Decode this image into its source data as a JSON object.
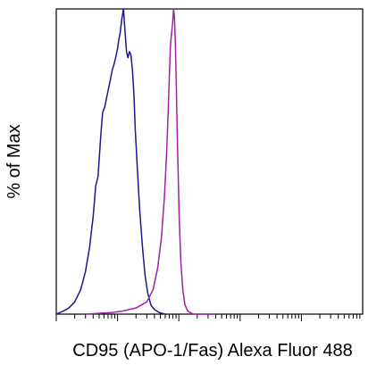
{
  "chart_data": {
    "type": "line",
    "title": "",
    "xlabel": "CD95 (APO-1/Fas) Alexa Fluor 488",
    "ylabel": "% of Max",
    "x_scale": "log",
    "xlim": [
      1,
      100000
    ],
    "ylim": [
      0,
      100
    ],
    "grid": false,
    "legend": "none",
    "series": [
      {
        "color": "#1a1a8c",
        "points": [
          [
            1.0,
            0
          ],
          [
            1.3,
            1
          ],
          [
            1.6,
            2
          ],
          [
            2.0,
            4
          ],
          [
            2.5,
            8
          ],
          [
            3.0,
            14
          ],
          [
            3.5,
            22
          ],
          [
            4.0,
            32
          ],
          [
            4.4,
            42
          ],
          [
            4.8,
            45
          ],
          [
            5.3,
            58
          ],
          [
            5.7,
            66
          ],
          [
            6.2,
            68
          ],
          [
            6.8,
            72
          ],
          [
            7.5,
            76
          ],
          [
            8.2,
            80
          ],
          [
            8.8,
            82
          ],
          [
            9.3,
            84
          ],
          [
            10.0,
            87
          ],
          [
            10.5,
            90
          ],
          [
            11.0,
            92
          ],
          [
            11.8,
            97
          ],
          [
            12.5,
            100
          ],
          [
            13.2,
            93
          ],
          [
            14.0,
            86
          ],
          [
            14.8,
            84
          ],
          [
            15.6,
            86
          ],
          [
            16.5,
            85
          ],
          [
            17.5,
            80
          ],
          [
            18.5,
            72
          ],
          [
            19.5,
            60
          ],
          [
            21.0,
            48
          ],
          [
            23.0,
            34
          ],
          [
            25.5,
            22
          ],
          [
            28.0,
            13
          ],
          [
            31.0,
            7
          ],
          [
            35.0,
            3
          ],
          [
            40.0,
            1.5
          ],
          [
            48.0,
            0.5
          ],
          [
            60.0,
            0
          ]
        ]
      },
      {
        "color": "#a020a8",
        "points": [
          [
            3.0,
            0
          ],
          [
            8.0,
            0.5
          ],
          [
            12.0,
            1
          ],
          [
            20.0,
            2
          ],
          [
            30.0,
            4
          ],
          [
            38.0,
            8
          ],
          [
            45.0,
            15
          ],
          [
            52.0,
            25
          ],
          [
            58.0,
            38
          ],
          [
            63.0,
            52
          ],
          [
            67.0,
            66
          ],
          [
            70.0,
            78
          ],
          [
            73.0,
            88
          ],
          [
            76.0,
            92
          ],
          [
            79.0,
            95
          ],
          [
            82.0,
            100
          ],
          [
            85.0,
            97
          ],
          [
            88.0,
            88
          ],
          [
            91.0,
            75
          ],
          [
            94.0,
            60
          ],
          [
            98.0,
            44
          ],
          [
            102.0,
            30
          ],
          [
            108.0,
            17
          ],
          [
            116.0,
            8
          ],
          [
            126.0,
            3
          ],
          [
            140.0,
            1
          ],
          [
            170.0,
            0
          ],
          [
            400.0,
            0
          ]
        ]
      }
    ]
  }
}
